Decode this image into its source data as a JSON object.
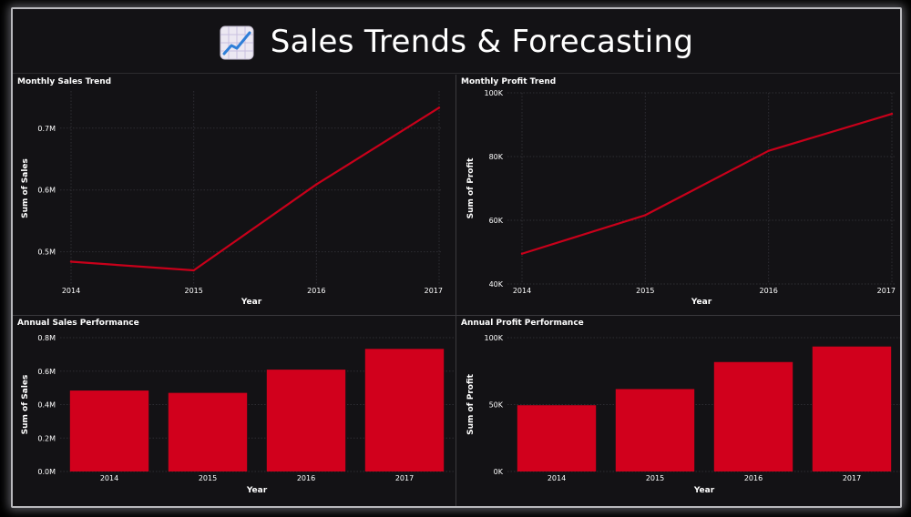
{
  "header": {
    "title": "Sales Trends & Forecasting",
    "icon": "chart-increasing-icon"
  },
  "colors": {
    "background": "#131215",
    "accent": "#d1001c",
    "line": "#c8001a",
    "text": "#ffffff"
  },
  "chart_data": [
    {
      "id": "monthly-sales",
      "type": "line",
      "title": "Monthly Sales Trend",
      "xlabel": "Year",
      "ylabel": "Sum of Sales",
      "categories": [
        "2014",
        "2015",
        "2016",
        "2017"
      ],
      "values": [
        484000,
        470000,
        609000,
        733000
      ],
      "yticks": [
        500000,
        600000,
        700000
      ],
      "ytick_labels": [
        "0.5M",
        "0.6M",
        "0.7M"
      ],
      "ylim": [
        445000,
        760000
      ],
      "grid": true
    },
    {
      "id": "monthly-profit",
      "type": "line",
      "title": "Monthly Profit Trend",
      "xlabel": "Year",
      "ylabel": "Sum of Profit",
      "categories": [
        "2014",
        "2015",
        "2016",
        "2017"
      ],
      "values": [
        49500,
        61600,
        81800,
        93400
      ],
      "yticks": [
        40000,
        60000,
        80000,
        100000
      ],
      "ytick_labels": [
        "40K",
        "60K",
        "80K",
        "100K"
      ],
      "ylim": [
        40000,
        100000
      ],
      "grid": true
    },
    {
      "id": "annual-sales",
      "type": "bar",
      "title": "Annual Sales Performance",
      "xlabel": "Year",
      "ylabel": "Sum of Sales",
      "categories": [
        "2014",
        "2015",
        "2016",
        "2017"
      ],
      "values": [
        484000,
        470000,
        609000,
        733000
      ],
      "yticks": [
        0,
        200000,
        400000,
        600000,
        800000
      ],
      "ytick_labels": [
        "0.0M",
        "0.2M",
        "0.4M",
        "0.6M",
        "0.8M"
      ],
      "ylim": [
        0,
        800000
      ],
      "grid": true
    },
    {
      "id": "annual-profit",
      "type": "bar",
      "title": "Annual Profit Performance",
      "xlabel": "Year",
      "ylabel": "Sum of Profit",
      "categories": [
        "2014",
        "2015",
        "2016",
        "2017"
      ],
      "values": [
        49500,
        61600,
        81800,
        93400
      ],
      "yticks": [
        0,
        50000,
        100000
      ],
      "ytick_labels": [
        "0K",
        "50K",
        "100K"
      ],
      "ylim": [
        0,
        100000
      ],
      "grid": true
    }
  ]
}
